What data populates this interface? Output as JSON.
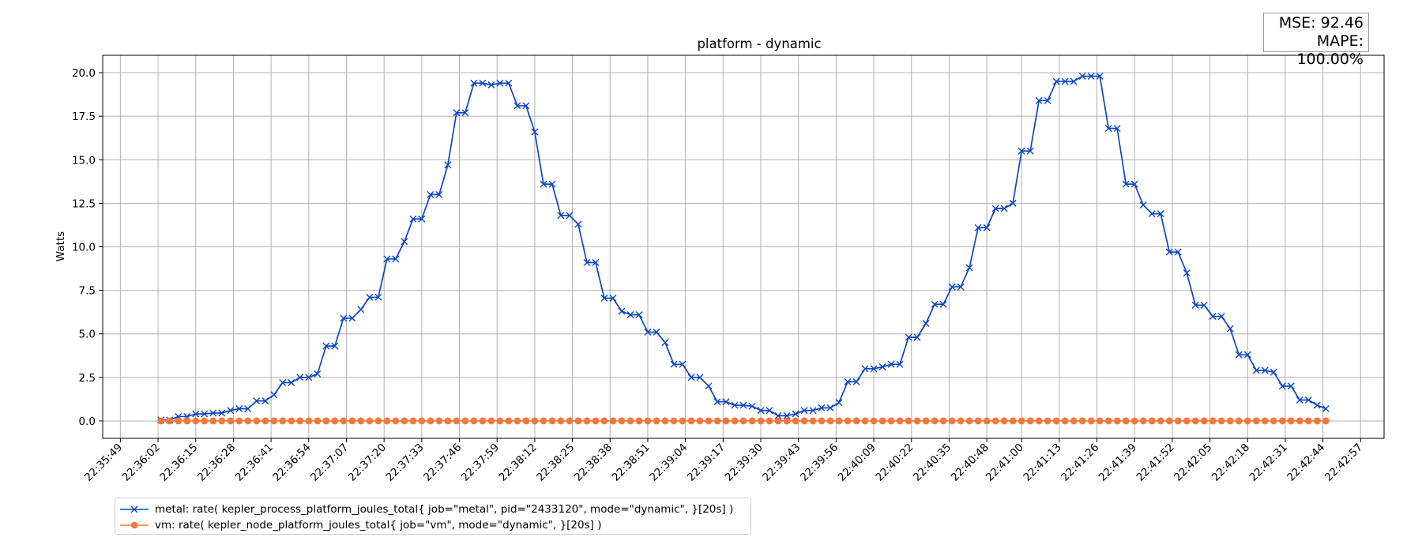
{
  "stats": {
    "mse": "MSE: 92.46",
    "mape": "MAPE: 100.00%"
  },
  "chart_data": {
    "type": "line",
    "title": "platform - dynamic",
    "xlabel": "",
    "ylabel": "Watts",
    "ylim": [
      -1.0,
      21.0
    ],
    "y_ticks": [
      0.0,
      2.5,
      5.0,
      7.5,
      10.0,
      12.5,
      15.0,
      17.5,
      20.0
    ],
    "y_tick_labels": [
      "0.0",
      "2.5",
      "5.0",
      "7.5",
      "10.0",
      "12.5",
      "15.0",
      "17.5",
      "20.0"
    ],
    "x_tick_labels": [
      "22:35:49",
      "22:36:02",
      "22:36:15",
      "22:36:28",
      "22:36:41",
      "22:36:54",
      "22:37:07",
      "22:37:20",
      "22:37:33",
      "22:37:46",
      "22:37:59",
      "22:38:12",
      "22:38:25",
      "22:38:38",
      "22:38:51",
      "22:39:04",
      "22:39:17",
      "22:39:30",
      "22:39:43",
      "22:39:56",
      "22:40:09",
      "22:40:22",
      "22:40:35",
      "22:40:48",
      "22:41:00",
      "22:41:13",
      "22:41:26",
      "22:41:39",
      "22:41:52",
      "22:42:05",
      "22:42:18",
      "22:42:31",
      "22:42:44",
      "22:42:57"
    ],
    "x_start": "22:36:03",
    "x_step_seconds": 3,
    "grid": true,
    "legend_position": "below-left",
    "series": [
      {
        "name": "metal: rate( kepler_process_platform_joules_total{ job=\"metal\", pid=\"2433120\", mode=\"dynamic\", }[20s] )",
        "color": "#0b46c6",
        "marker": "x",
        "values": [
          0.05,
          0.05,
          0.25,
          0.25,
          0.4,
          0.4,
          0.45,
          0.45,
          0.6,
          0.7,
          0.7,
          1.15,
          1.15,
          1.5,
          2.2,
          2.2,
          2.5,
          2.5,
          2.7,
          4.3,
          4.3,
          5.9,
          5.9,
          6.4,
          7.1,
          7.1,
          9.3,
          9.3,
          10.3,
          11.6,
          11.6,
          13.0,
          13.0,
          14.7,
          17.7,
          17.7,
          19.4,
          19.4,
          19.3,
          19.4,
          19.4,
          18.1,
          18.1,
          16.6,
          13.6,
          13.6,
          11.8,
          11.8,
          11.3,
          9.1,
          9.1,
          7.05,
          7.05,
          6.3,
          6.1,
          6.1,
          5.1,
          5.1,
          4.5,
          3.25,
          3.25,
          2.5,
          2.5,
          2.0,
          1.1,
          1.1,
          0.9,
          0.9,
          0.85,
          0.6,
          0.6,
          0.3,
          0.3,
          0.4,
          0.6,
          0.6,
          0.75,
          0.75,
          1.05,
          2.25,
          2.25,
          3.0,
          3.0,
          3.1,
          3.25,
          3.25,
          4.8,
          4.8,
          5.6,
          6.7,
          6.7,
          7.7,
          7.7,
          8.8,
          11.1,
          11.1,
          12.2,
          12.2,
          12.5,
          15.5,
          15.5,
          18.4,
          18.4,
          19.5,
          19.5,
          19.5,
          19.8,
          19.8,
          19.8,
          16.8,
          16.8,
          13.6,
          13.6,
          12.4,
          11.9,
          11.9,
          9.7,
          9.7,
          8.5,
          6.65,
          6.65,
          6.0,
          6.0,
          5.3,
          3.8,
          3.8,
          2.9,
          2.9,
          2.8,
          2.0,
          2.0,
          1.2,
          1.2,
          0.9,
          0.7
        ]
      },
      {
        "name": "vm: rate( kepler_node_platform_joules_total{ job=\"vm\", mode=\"dynamic\", }[20s] )",
        "color": "#f5773a",
        "marker": "o",
        "constant_value": 0.0
      }
    ]
  }
}
